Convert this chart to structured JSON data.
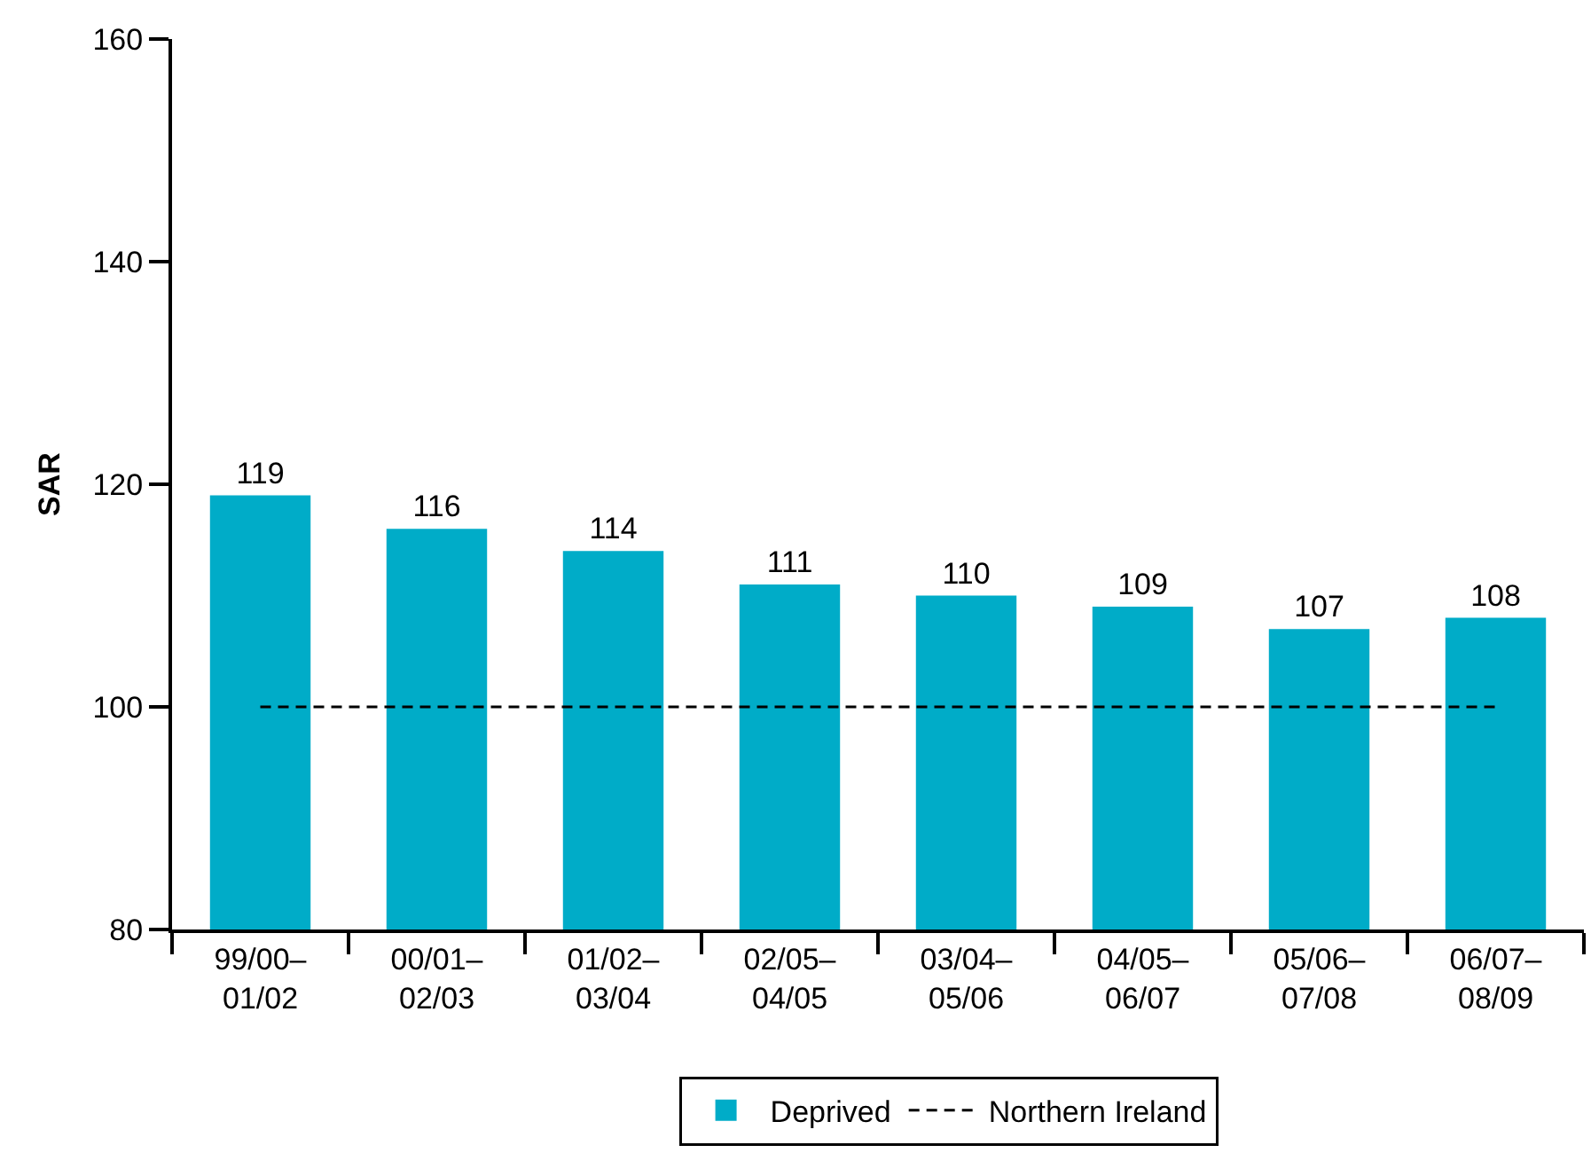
{
  "chart_data": {
    "type": "bar",
    "ylabel": "SAR",
    "categories": [
      "99/00–\n01/02",
      "00/01–\n02/03",
      "01/02–\n03/04",
      "02/05–\n04/05",
      "03/04–\n05/06",
      "04/05–\n06/07",
      "05/06–\n07/08",
      "06/07–\n08/09"
    ],
    "series": [
      {
        "name": "Deprived",
        "color": "#00acc8",
        "values": [
          119,
          116,
          114,
          111,
          110,
          109,
          107,
          108
        ],
        "data_labels": true
      },
      {
        "name": "Northern Ireland",
        "type": "line",
        "color": "#000000",
        "values": [
          100,
          100,
          100,
          100,
          100,
          100,
          100,
          100
        ],
        "line_style": "dashed",
        "marker": "none"
      }
    ],
    "ylim": [
      80,
      160
    ],
    "yticks": [
      80,
      100,
      120,
      140,
      160
    ],
    "grid": false,
    "legend": "bottom"
  }
}
